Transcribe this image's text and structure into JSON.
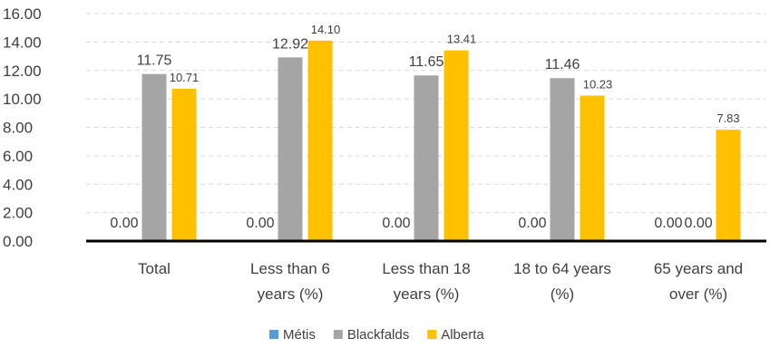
{
  "chart_data": {
    "type": "bar",
    "categories": [
      [
        "Total"
      ],
      [
        "Less than 6",
        "years (%)"
      ],
      [
        "Less than 18",
        "years (%)"
      ],
      [
        "18 to 64 years",
        "(%)"
      ],
      [
        "65 years and",
        "over (%)"
      ]
    ],
    "series": [
      {
        "name": "Métis",
        "color": "#5b9bd5",
        "values": [
          0,
          0,
          0,
          0,
          0
        ],
        "labels": [
          "0.00",
          "0.00",
          "0.00",
          "0.00",
          "0.00"
        ]
      },
      {
        "name": "Blackfalds",
        "color": "#a5a5a5",
        "values": [
          11.75,
          12.92,
          11.65,
          11.46,
          0
        ],
        "labels": [
          "11.75",
          "12.92",
          "11.65",
          "11.46",
          "0.00"
        ]
      },
      {
        "name": "Alberta",
        "color": "#ffc000",
        "values": [
          10.71,
          14.1,
          13.41,
          10.23,
          7.83
        ],
        "labels": [
          "10.71",
          "14.10",
          "13.41",
          "10.23",
          "7.83"
        ]
      }
    ],
    "ylim": [
      0,
      16
    ],
    "yticks": [
      "0.00",
      "2.00",
      "4.00",
      "6.00",
      "8.00",
      "10.00",
      "12.00",
      "14.00",
      "16.00"
    ],
    "grid": "dashed horizontal",
    "legend": "bottom-center",
    "title": "",
    "xlabel": "",
    "ylabel": ""
  }
}
